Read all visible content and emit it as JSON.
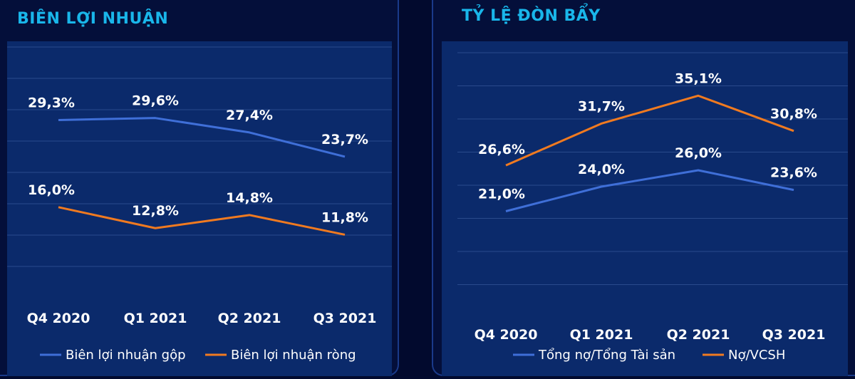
{
  "chart_data": [
    {
      "type": "line",
      "title": "BIÊN LỢI NHUẬN",
      "categories": [
        "Q4 2020",
        "Q1 2021",
        "Q2 2021",
        "Q3 2021"
      ],
      "ylim": [
        0,
        35
      ],
      "grid": true,
      "legend_position": "bottom",
      "series": [
        {
          "name": "Biên lợi nhuận gộp",
          "values": [
            29.3,
            29.6,
            27.4,
            23.7
          ],
          "labels": [
            "29,3%",
            "29,6%",
            "27,4%",
            "23,7%"
          ],
          "color": "#3f6fd8"
        },
        {
          "name": "Biên lợi nhuận ròng",
          "values": [
            16.0,
            12.8,
            14.8,
            11.8
          ],
          "labels": [
            "16,0%",
            "12,8%",
            "14,8%",
            "11,8%"
          ],
          "color": "#f07a20"
        }
      ]
    },
    {
      "type": "line",
      "title": "TỶ LỆ ĐÒN BẨY",
      "categories": [
        "Q4 2020",
        "Q1 2021",
        "Q2 2021",
        "Q3 2021"
      ],
      "ylim": [
        0,
        40
      ],
      "grid": true,
      "legend_position": "bottom",
      "series": [
        {
          "name": "Tổng nợ/Tổng Tài sản",
          "values": [
            21.0,
            24.0,
            26.0,
            23.6
          ],
          "labels": [
            "21,0%",
            "24,0%",
            "26,0%",
            "23,6%"
          ],
          "color": "#3f6fd8"
        },
        {
          "name": "Nợ/VCSH",
          "values": [
            26.6,
            31.7,
            35.1,
            30.8
          ],
          "labels": [
            "26,6%",
            "31,7%",
            "35,1%",
            "30,8%"
          ],
          "color": "#f07a20"
        }
      ]
    }
  ]
}
